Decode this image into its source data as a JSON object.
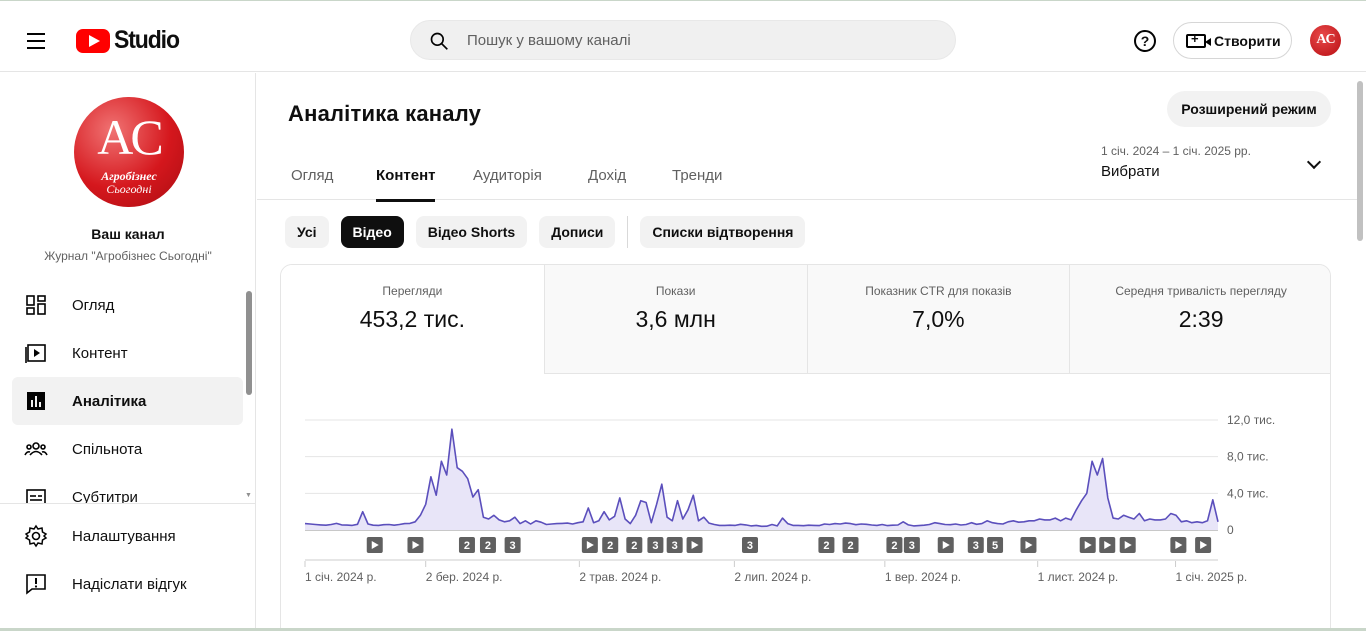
{
  "header": {
    "app_name": "Studio",
    "search_placeholder": "Пошук у вашому каналі",
    "help_label": "?",
    "create_label": "Створити",
    "avatar_initials": "AC"
  },
  "sidebar": {
    "channel_logo": {
      "initials": "AC",
      "line1": "Агробізнес",
      "line2": "Сьогодні"
    },
    "channel_title": "Ваш канал",
    "channel_name": "Журнал \"Агробізнес Сьогодні\"",
    "items": [
      {
        "label": "Огляд",
        "icon": "dashboard-icon"
      },
      {
        "label": "Контент",
        "icon": "content-icon"
      },
      {
        "label": "Аналітика",
        "icon": "analytics-icon",
        "active": true
      },
      {
        "label": "Спільнота",
        "icon": "community-icon"
      },
      {
        "label": "Субтитри",
        "icon": "subtitles-icon"
      }
    ],
    "bottom_items": [
      {
        "label": "Налаштування",
        "icon": "gear-icon"
      },
      {
        "label": "Надіслати відгук",
        "icon": "feedback-icon"
      }
    ]
  },
  "main": {
    "title": "Аналітика каналу",
    "advanced_button": "Розширений режим",
    "tabs": [
      {
        "label": "Огляд"
      },
      {
        "label": "Контент",
        "active": true
      },
      {
        "label": "Аудиторія"
      },
      {
        "label": "Дохід"
      },
      {
        "label": "Тренди"
      }
    ],
    "date_range": "1 січ. 2024 – 1 січ. 2025 рр.",
    "date_select": "Вибрати",
    "chips": [
      {
        "label": "Усі"
      },
      {
        "label": "Відео",
        "active": true
      },
      {
        "label": "Відео Shorts"
      },
      {
        "label": "Дописи"
      },
      {
        "label": "Списки відтворення"
      }
    ],
    "metrics": [
      {
        "label": "Перегляди",
        "value": "453,2 тис."
      },
      {
        "label": "Покази",
        "value": "3,6 млн"
      },
      {
        "label": "Показник CTR для показів",
        "value": "7,0%"
      },
      {
        "label": "Середня тривалість перегляду",
        "value": "2:39"
      }
    ]
  },
  "chart_data": {
    "type": "area",
    "series": [
      {
        "values": [
          700,
          650,
          600,
          560,
          520,
          600,
          720,
          560,
          540,
          500,
          620,
          2000,
          650,
          520,
          500,
          580,
          600,
          520,
          600,
          700,
          720,
          900,
          1600,
          2800,
          5800,
          3800,
          7500,
          6000,
          11000,
          6800,
          6400,
          5600,
          3600,
          4400,
          1400,
          1200,
          1600,
          1100,
          900,
          1000,
          1400,
          700,
          1000,
          650,
          1000,
          850,
          600,
          650,
          700,
          720,
          750,
          650,
          800,
          900,
          2400,
          800,
          1000,
          2000,
          1100,
          1500,
          3500,
          1200,
          700,
          1600,
          3200,
          3000,
          800,
          2800,
          5000,
          1400,
          1000,
          3200,
          1200,
          2200,
          3800,
          1000,
          1400,
          750,
          600,
          500,
          500,
          520,
          500,
          620,
          560,
          450,
          500,
          400,
          420,
          600,
          450,
          1300,
          700,
          500,
          500,
          470,
          520,
          500,
          480,
          650,
          600,
          700,
          650,
          750,
          700,
          580,
          650,
          620,
          550,
          500,
          600,
          480,
          520,
          550,
          900,
          560,
          450,
          480,
          520,
          600,
          800,
          700,
          600,
          580,
          650,
          550,
          600,
          800,
          620,
          700,
          1000,
          800,
          700,
          650,
          900,
          1000,
          850,
          900,
          1000,
          1000,
          1200,
          1100,
          1100,
          1300,
          1000,
          1300,
          1100,
          2200,
          3200,
          4000,
          7500,
          6000,
          7800,
          3500,
          1300,
          1200,
          1600,
          1400,
          1200,
          1800,
          1000,
          1200,
          1100,
          1100,
          1200,
          1800,
          1600,
          900,
          1000,
          800,
          900,
          800,
          1000,
          3300,
          900
        ]
      }
    ],
    "y_ticks": [
      "12,0 тис.",
      "8,0 тис.",
      "4,0 тис.",
      "0"
    ],
    "ylim": [
      0,
      12000
    ],
    "x_ticks": [
      "1 січ. 2024 р.",
      "2 бер. 2024 р.",
      "2 трав. 2024 р.",
      "2 лип. 2024 р.",
      "1 вер. 2024 р.",
      "1 лист. 2024 р.",
      "1 січ. 2025 р."
    ],
    "x_tick_fractions": [
      0,
      0.1322,
      0.3005,
      0.4703,
      0.6351,
      0.8025,
      0.9535
    ],
    "markers": [
      {
        "t": "play",
        "f": 0.0764
      },
      {
        "t": "play",
        "f": 0.121
      },
      {
        "t": "2",
        "f": 0.1774
      },
      {
        "t": "2",
        "f": 0.2004
      },
      {
        "t": "3",
        "f": 0.2274
      },
      {
        "t": "play",
        "f": 0.312
      },
      {
        "t": "2",
        "f": 0.3343
      },
      {
        "t": "2",
        "f": 0.3607
      },
      {
        "t": "3",
        "f": 0.3838
      },
      {
        "t": "3",
        "f": 0.4049
      },
      {
        "t": "play",
        "f": 0.4267
      },
      {
        "t": "3",
        "f": 0.4874
      },
      {
        "t": "2",
        "f": 0.5711
      },
      {
        "t": "2",
        "f": 0.5975
      },
      {
        "t": "2",
        "f": 0.6456
      },
      {
        "t": "3",
        "f": 0.6647
      },
      {
        "t": "play",
        "f": 0.7018
      },
      {
        "t": "3",
        "f": 0.7347
      },
      {
        "t": "5",
        "f": 0.7558
      },
      {
        "t": "play",
        "f": 0.7924
      },
      {
        "t": "play",
        "f": 0.8573
      },
      {
        "t": "play",
        "f": 0.8787
      },
      {
        "t": "play",
        "f": 0.9011
      },
      {
        "t": "play",
        "f": 0.9566
      },
      {
        "t": "play",
        "f": 0.9837
      }
    ],
    "color": "#5b4fbc",
    "fill": "#e8e5f8"
  }
}
